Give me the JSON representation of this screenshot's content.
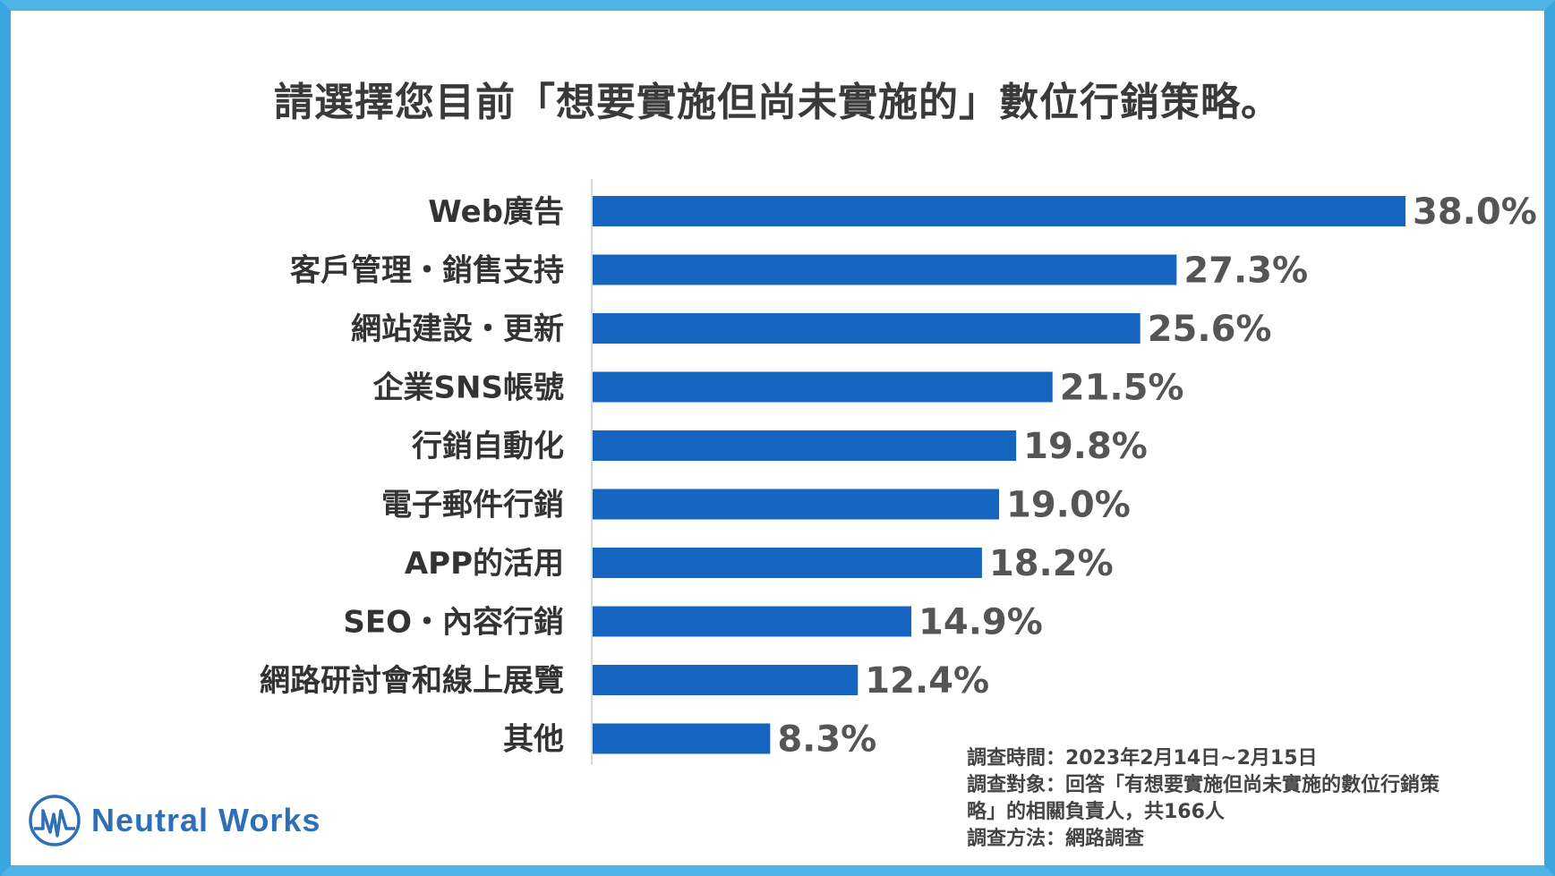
{
  "title": "請選擇您目前「想要實施但尚未實施的」數位行銷策略。",
  "chart_data": {
    "type": "bar",
    "orientation": "horizontal",
    "categories": [
      "Web廣告",
      "客戶管理・銷售支持",
      "網站建設・更新",
      "企業SNS帳號",
      "行銷自動化",
      "電子郵件行銷",
      "APP的活用",
      "SEO・內容行銷",
      "網路研討會和線上展覽",
      "其他"
    ],
    "values": [
      38.0,
      27.3,
      25.6,
      21.5,
      19.8,
      19.0,
      18.2,
      14.9,
      12.4,
      8.3
    ],
    "value_labels": [
      "38.0%",
      "27.3%",
      "25.6%",
      "21.5%",
      "19.8%",
      "19.0%",
      "18.2%",
      "14.9%",
      "12.4%",
      "8.3%"
    ],
    "xlim": [
      0,
      38.0
    ],
    "bar_color": "#1565c0",
    "grid": false
  },
  "logo": {
    "text": "Neutral Works",
    "icon": "neutral-works-logo-icon",
    "color": "#2e6fb6"
  },
  "notes": {
    "survey_period": "調查時間：2023年2月14日~2月15日",
    "survey_target_line1": "調查對象：回答「有想要實施但尚未實施的數位行銷策",
    "survey_target_line2": "略」的相關負責人，共166人",
    "survey_method": "調查方法：網路調查"
  },
  "frame_color": "#4fb3e6"
}
